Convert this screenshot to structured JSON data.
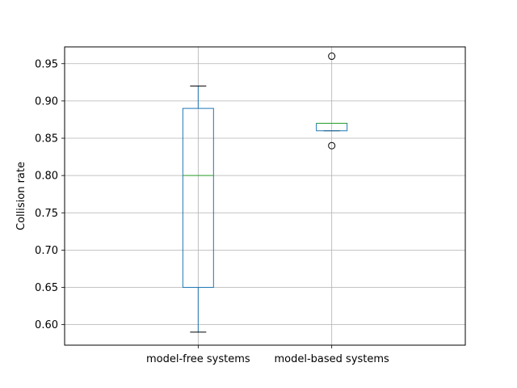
{
  "chart_data": {
    "type": "box",
    "title": "",
    "xlabel": "",
    "ylabel": "Collision rate",
    "ylim": [
      0.5725,
      0.9725
    ],
    "yticks": [
      "0.60",
      "0.65",
      "0.70",
      "0.75",
      "0.80",
      "0.85",
      "0.90",
      "0.95"
    ],
    "grid": true,
    "categories": [
      "model-free systems",
      "model-based systems"
    ],
    "boxes": [
      {
        "category": "model-free systems",
        "whisker_low": 0.59,
        "q1": 0.65,
        "median": 0.8,
        "q3": 0.89,
        "whisker_high": 0.92,
        "outliers": []
      },
      {
        "category": "model-based systems",
        "whisker_low": 0.86,
        "q1": 0.86,
        "median": 0.87,
        "q3": 0.87,
        "whisker_high": 0.87,
        "outliers": [
          0.84,
          0.96
        ]
      }
    ],
    "colors": {
      "box": "#1f77b4",
      "median": "#2ca02c",
      "whisker": "#1f77b4",
      "cap": "#000000",
      "grid": "#b0b0b0",
      "outlier": "#000000"
    }
  }
}
